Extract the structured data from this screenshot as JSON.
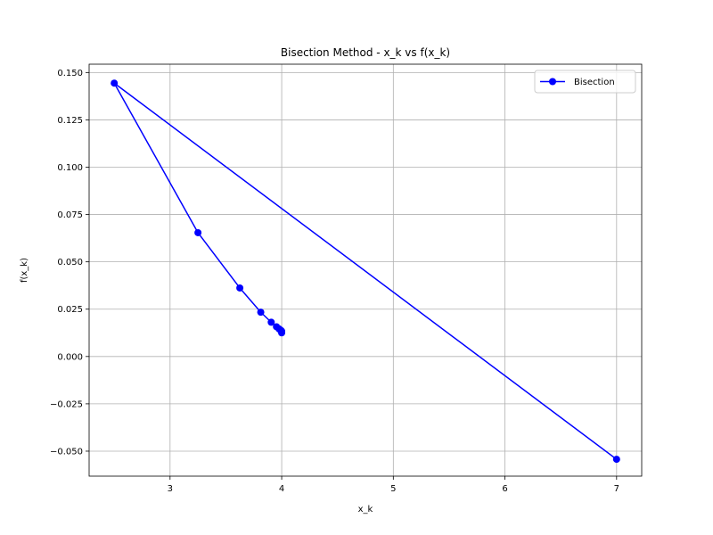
{
  "chart_data": {
    "type": "line",
    "title": "Bisection Method - x_k vs f(x_k)",
    "xlabel": "x_k",
    "ylabel": "f(x_k)",
    "xlim": [
      2.275,
      7.225
    ],
    "ylim": [
      -0.0632,
      0.1544
    ],
    "x_ticks": [
      3,
      4,
      5,
      6,
      7
    ],
    "x_tick_labels": [
      "3",
      "4",
      "5",
      "6",
      "7"
    ],
    "y_ticks": [
      -0.05,
      -0.025,
      0.0,
      0.025,
      0.05,
      0.075,
      0.1,
      0.125,
      0.15
    ],
    "y_tick_labels": [
      "−0.050",
      "−0.025",
      "0.000",
      "0.025",
      "0.050",
      "0.075",
      "0.100",
      "0.125",
      "0.150"
    ],
    "grid": true,
    "legend_position": "upper right",
    "series": [
      {
        "name": "Bisection",
        "color": "#0000ff",
        "marker": "circle",
        "x": [
          7.0,
          2.5,
          3.25,
          3.625,
          3.8125,
          3.90625,
          3.953125,
          3.9765625,
          3.98828125,
          3.994140625,
          3.9970703125,
          3.99853515625,
          3.999267578125,
          3.9996337890625,
          3.99981689453125
        ],
        "y": [
          -0.0543,
          0.1444,
          0.0654,
          0.0362,
          0.0234,
          0.0181,
          0.0157,
          0.0146,
          0.014,
          0.0137,
          0.0135,
          0.0134,
          0.0133,
          0.0132,
          0.0125
        ]
      }
    ]
  }
}
